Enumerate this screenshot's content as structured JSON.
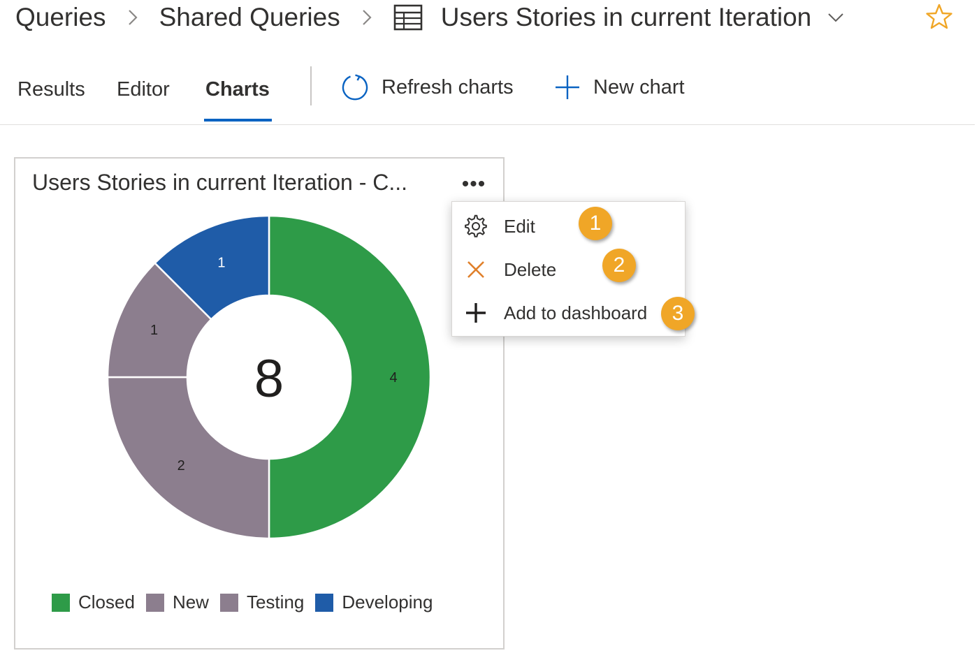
{
  "breadcrumb": {
    "root": "Queries",
    "folder": "Shared Queries",
    "query": "Users Stories in current Iteration"
  },
  "tabs": {
    "results": "Results",
    "editor": "Editor",
    "charts": "Charts",
    "active": "Charts"
  },
  "toolbar": {
    "refresh_label": "Refresh charts",
    "new_chart_label": "New chart"
  },
  "card": {
    "title": "Users Stories in current Iteration - C...",
    "more_label": "•••"
  },
  "chart_data": {
    "type": "pie",
    "donut": true,
    "total": "8",
    "slices": [
      {
        "name": "Closed",
        "value": 4,
        "color": "#2e9b48"
      },
      {
        "name": "New",
        "value": 2,
        "color": "#8c7e8e"
      },
      {
        "name": "Testing",
        "value": 1,
        "color": "#8c7e8e"
      },
      {
        "name": "Developing",
        "value": 1,
        "color": "#1f5ca8"
      }
    ],
    "legend_position": "bottom"
  },
  "menu": {
    "items": [
      {
        "label": "Edit",
        "icon": "gear-icon",
        "callout": "1"
      },
      {
        "label": "Delete",
        "icon": "close-icon",
        "callout": "2"
      },
      {
        "label": "Add to dashboard",
        "icon": "plus-icon",
        "callout": "3"
      }
    ]
  },
  "colors": {
    "accent": "#0a63c2",
    "star": "#f0a627",
    "callout": "#f0a627",
    "delete_icon": "#e0802a"
  }
}
